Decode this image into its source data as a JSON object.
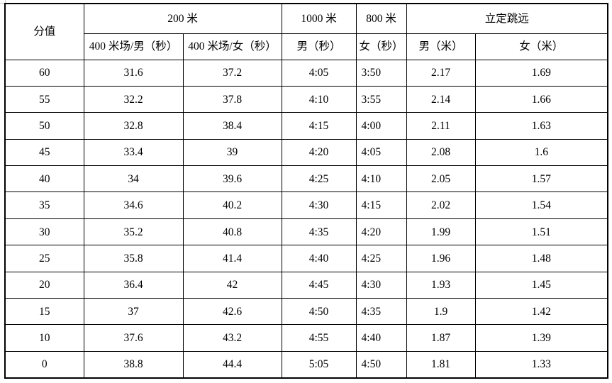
{
  "table": {
    "header": {
      "score_label": "分值",
      "group_200m": "200 米",
      "col_400_male": "400 米场/男（秒）",
      "col_400_female": "400 米场/女（秒）",
      "group_1000m": "1000 米",
      "col_1000_male": "男（秒）",
      "group_800m": "800 米",
      "col_800_female": "女（秒）",
      "group_jump": "立定跳远",
      "col_jump_male": "男（米）",
      "col_jump_female": "女（米）"
    },
    "rows": [
      {
        "score": "60",
        "m400_male": "31.6",
        "m400_female": "37.2",
        "m1000_male": "4:05",
        "m800_female": "3:50",
        "jump_male": "2.17",
        "jump_female": "1.69"
      },
      {
        "score": "55",
        "m400_male": "32.2",
        "m400_female": "37.8",
        "m1000_male": "4:10",
        "m800_female": "3:55",
        "jump_male": "2.14",
        "jump_female": "1.66"
      },
      {
        "score": "50",
        "m400_male": "32.8",
        "m400_female": "38.4",
        "m1000_male": "4:15",
        "m800_female": "4:00",
        "jump_male": "2.11",
        "jump_female": "1.63"
      },
      {
        "score": "45",
        "m400_male": "33.4",
        "m400_female": "39",
        "m1000_male": "4:20",
        "m800_female": "4:05",
        "jump_male": "2.08",
        "jump_female": "1.6"
      },
      {
        "score": "40",
        "m400_male": "34",
        "m400_female": "39.6",
        "m1000_male": "4:25",
        "m800_female": "4:10",
        "jump_male": "2.05",
        "jump_female": "1.57"
      },
      {
        "score": "35",
        "m400_male": "34.6",
        "m400_female": "40.2",
        "m1000_male": "4:30",
        "m800_female": "4:15",
        "jump_male": "2.02",
        "jump_female": "1.54"
      },
      {
        "score": "30",
        "m400_male": "35.2",
        "m400_female": "40.8",
        "m1000_male": "4:35",
        "m800_female": "4:20",
        "jump_male": "1.99",
        "jump_female": "1.51"
      },
      {
        "score": "25",
        "m400_male": "35.8",
        "m400_female": "41.4",
        "m1000_male": "4:40",
        "m800_female": "4:25",
        "jump_male": "1.96",
        "jump_female": "1.48"
      },
      {
        "score": "20",
        "m400_male": "36.4",
        "m400_female": "42",
        "m1000_male": "4:45",
        "m800_female": "4:30",
        "jump_male": "1.93",
        "jump_female": "1.45"
      },
      {
        "score": "15",
        "m400_male": "37",
        "m400_female": "42.6",
        "m1000_male": "4:50",
        "m800_female": "4:35",
        "jump_male": "1.9",
        "jump_female": "1.42"
      },
      {
        "score": "10",
        "m400_male": "37.6",
        "m400_female": "43.2",
        "m1000_male": "4:55",
        "m800_female": "4:40",
        "jump_male": "1.87",
        "jump_female": "1.39"
      },
      {
        "score": "0",
        "m400_male": "38.8",
        "m400_female": "44.4",
        "m1000_male": "5:05",
        "m800_female": "4:50",
        "jump_male": "1.81",
        "jump_female": "1.33"
      }
    ]
  }
}
